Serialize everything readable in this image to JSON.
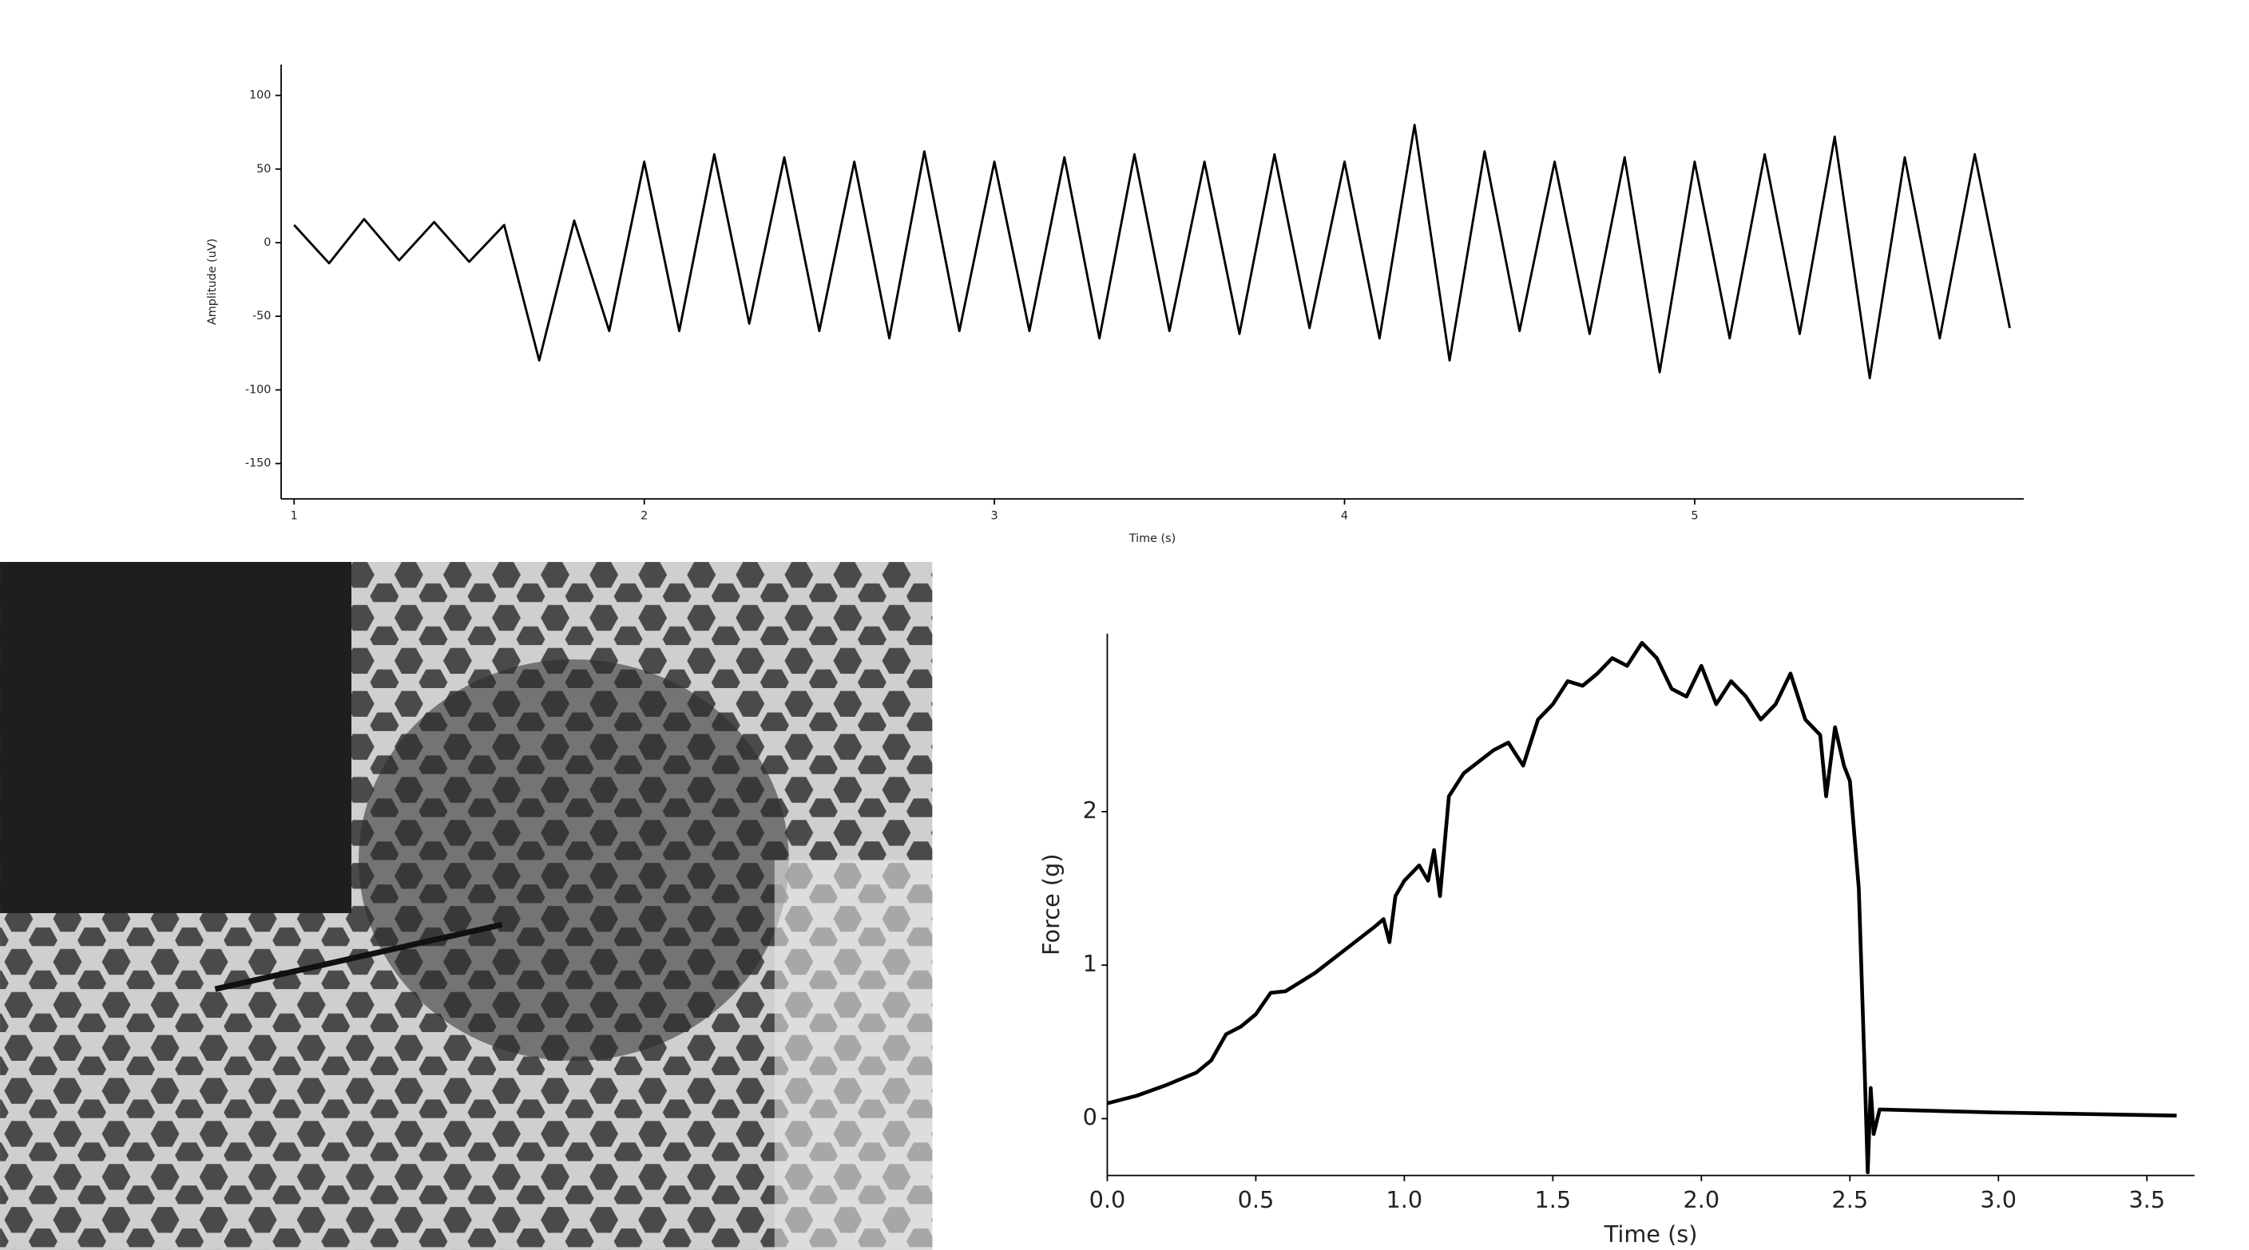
{
  "chart_data": [
    {
      "type": "line",
      "xlabel": "Time (s)",
      "ylabel": "Amplitude (uV)",
      "color": "#000000",
      "xlim": [
        0.963,
        5.94
      ],
      "ylim": [
        -174,
        121
      ],
      "xticks": [
        1,
        2,
        3,
        4,
        5
      ],
      "yticks": [
        100,
        50,
        0,
        -50,
        -100,
        -150
      ],
      "x": [
        1.0,
        1.1,
        1.2,
        1.3,
        1.4,
        1.5,
        1.6,
        1.7,
        1.8,
        1.9,
        2.0,
        2.1,
        2.2,
        2.3,
        2.4,
        2.5,
        2.6,
        2.7,
        2.8,
        2.9,
        3.0,
        3.1,
        3.2,
        3.3,
        3.4,
        3.5,
        3.6,
        3.7,
        3.8,
        3.9,
        4.0,
        4.1,
        4.2,
        4.3,
        4.4,
        4.5,
        4.6,
        4.7,
        4.8,
        4.9,
        5.0,
        5.1,
        5.2,
        5.3,
        5.4,
        5.5,
        5.6,
        5.7,
        5.8,
        5.9
      ],
      "values": [
        12,
        -14,
        16,
        -12,
        14,
        -13,
        12,
        -80,
        15,
        -60,
        55,
        -60,
        60,
        -55,
        58,
        -60,
        55,
        -65,
        62,
        -60,
        55,
        -60,
        58,
        -65,
        60,
        -60,
        55,
        -62,
        60,
        -58,
        55,
        -65,
        80,
        -80,
        62,
        -60,
        55,
        -62,
        58,
        -88,
        55,
        -65,
        60,
        -62,
        72,
        -92,
        58,
        -65,
        60,
        -58
      ]
    },
    {
      "type": "line",
      "xlabel": "Time (s)",
      "ylabel": "Force (g)",
      "color": "#000000",
      "xlim": [
        0,
        3.66
      ],
      "ylim": [
        -0.37,
        3.16
      ],
      "xticks": [
        {
          "value": 0,
          "label": "0.0"
        },
        0.5,
        {
          "value": 1,
          "label": "1.0"
        },
        1.5,
        {
          "value": 2,
          "label": "2.0"
        },
        2.5,
        {
          "value": 3,
          "label": "3.0"
        },
        3.5
      ],
      "yticks": [
        0,
        1,
        2
      ],
      "x": [
        0,
        0.1,
        0.2,
        0.3,
        0.35,
        0.4,
        0.45,
        0.5,
        0.55,
        0.6,
        0.7,
        0.8,
        0.9,
        0.93,
        0.95,
        0.97,
        1.0,
        1.05,
        1.08,
        1.1,
        1.12,
        1.15,
        1.2,
        1.3,
        1.35,
        1.4,
        1.45,
        1.5,
        1.55,
        1.6,
        1.65,
        1.7,
        1.75,
        1.8,
        1.85,
        1.9,
        1.95,
        2.0,
        2.05,
        2.1,
        2.15,
        2.2,
        2.25,
        2.3,
        2.35,
        2.4,
        2.42,
        2.45,
        2.48,
        2.5,
        2.53,
        2.55,
        2.56,
        2.57,
        2.58,
        2.6,
        2.8,
        3.0,
        3.3,
        3.6
      ],
      "values": [
        0.1,
        0.15,
        0.22,
        0.3,
        0.38,
        0.55,
        0.6,
        0.68,
        0.82,
        0.83,
        0.95,
        1.1,
        1.25,
        1.3,
        1.15,
        1.45,
        1.55,
        1.65,
        1.55,
        1.75,
        1.45,
        2.1,
        2.25,
        2.4,
        2.45,
        2.3,
        2.6,
        2.7,
        2.85,
        2.82,
        2.9,
        3.0,
        2.95,
        3.1,
        3.0,
        2.8,
        2.75,
        2.95,
        2.7,
        2.85,
        2.75,
        2.6,
        2.7,
        2.9,
        2.6,
        2.5,
        2.1,
        2.55,
        2.3,
        2.2,
        1.5,
        0.3,
        -0.35,
        0.2,
        -0.1,
        0.06,
        0.05,
        0.04,
        0.03,
        0.02
      ]
    }
  ]
}
